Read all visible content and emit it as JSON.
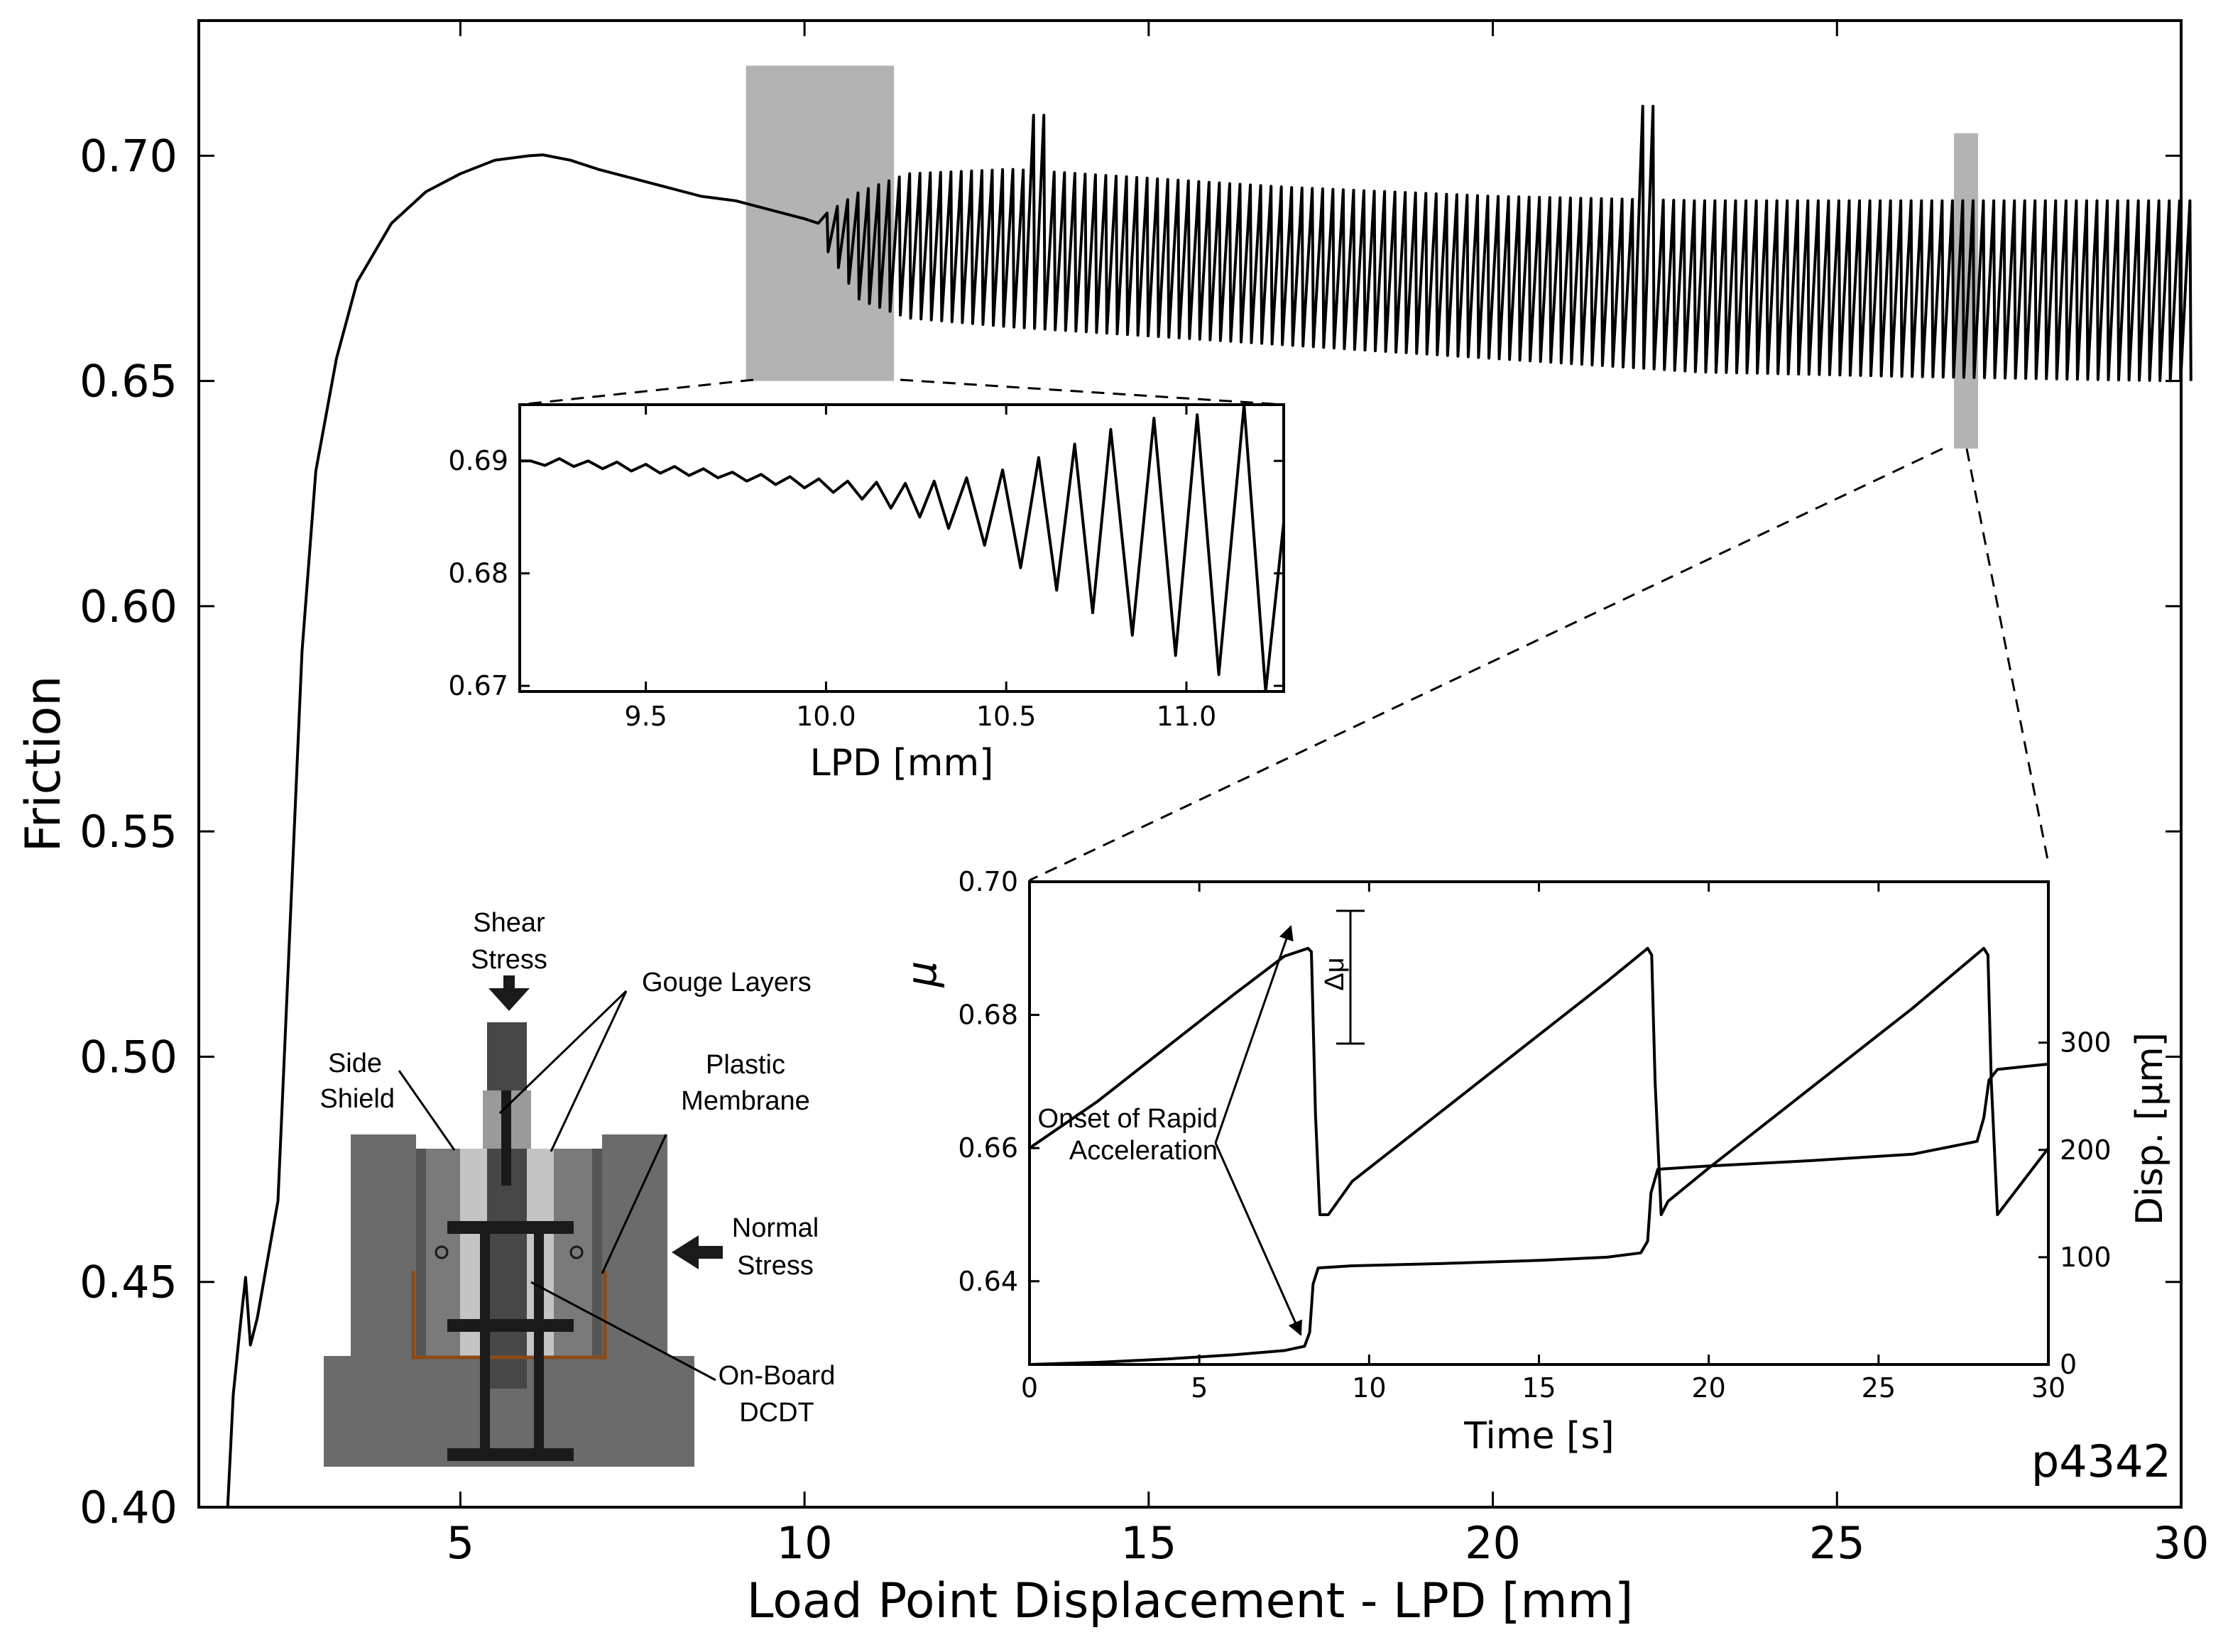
{
  "chart_data": [
    {
      "id": "main",
      "type": "line",
      "xlabel": "Load Point Displacement - LPD [mm]",
      "ylabel": "Friction",
      "xlim": [
        1.2,
        30
      ],
      "ylim": [
        0.4,
        0.73
      ],
      "xticks": [
        "5",
        "10",
        "15",
        "20",
        "25",
        "30"
      ],
      "yticks": [
        "0.40",
        "0.45",
        "0.50",
        "0.55",
        "0.60",
        "0.65",
        "0.70"
      ],
      "sample_label": "p4342",
      "grid": false,
      "series": [
        {
          "points": [
            [
              1.62,
              0.4
            ],
            [
              1.7,
              0.425
            ],
            [
              1.8,
              0.44
            ],
            [
              1.88,
              0.451
            ],
            [
              1.95,
              0.436
            ],
            [
              2.05,
              0.442
            ],
            [
              2.2,
              0.455
            ],
            [
              2.35,
              0.468
            ],
            [
              2.5,
              0.52
            ],
            [
              2.7,
              0.59
            ],
            [
              2.9,
              0.63
            ],
            [
              3.2,
              0.655
            ],
            [
              3.5,
              0.672
            ],
            [
              4.0,
              0.685
            ],
            [
              4.5,
              0.692
            ],
            [
              5.0,
              0.696
            ],
            [
              5.5,
              0.699
            ],
            [
              6.0,
              0.7
            ],
            [
              6.2,
              0.7002
            ],
            [
              6.6,
              0.699
            ],
            [
              7.0,
              0.697
            ],
            [
              7.5,
              0.695
            ],
            [
              8.0,
              0.693
            ],
            [
              8.5,
              0.691
            ],
            [
              9.0,
              0.69
            ],
            [
              9.5,
              0.688
            ],
            [
              10.0,
              0.686
            ],
            [
              10.2,
              0.685
            ]
          ],
          "stick_slip": {
            "x_start": 10.2,
            "x_end": 30.0,
            "period_mm": 0.15,
            "upper_envelope": [
              [
                10.2,
                0.686
              ],
              [
                10.8,
                0.692
              ],
              [
                11.5,
                0.696
              ],
              [
                13.0,
                0.697
              ],
              [
                15.0,
                0.695
              ],
              [
                17.0,
                0.693
              ],
              [
                20.0,
                0.691
              ],
              [
                23.0,
                0.69
              ],
              [
                26.0,
                0.69
              ],
              [
                30.0,
                0.69
              ]
            ],
            "lower_envelope": [
              [
                10.2,
                0.682
              ],
              [
                10.8,
                0.668
              ],
              [
                11.5,
                0.664
              ],
              [
                13.0,
                0.662
              ],
              [
                15.0,
                0.66
              ],
              [
                17.0,
                0.658
              ],
              [
                20.0,
                0.655
              ],
              [
                23.0,
                0.652
              ],
              [
                26.0,
                0.651
              ],
              [
                30.0,
                0.65
              ]
            ],
            "spikes": [
              [
                13.45,
                0.709
              ],
              [
                22.3,
                0.711
              ]
            ]
          }
        }
      ],
      "highlights": [
        {
          "x": [
            9.15,
            11.3
          ],
          "y": [
            0.65,
            0.72
          ],
          "color": "#b3b3b3"
        },
        {
          "x": [
            26.7,
            27.05
          ],
          "y": [
            0.635,
            0.705
          ],
          "color": "#b3b3b3"
        }
      ]
    },
    {
      "id": "inset-lpd",
      "type": "line",
      "xlabel": "LPD [mm]",
      "xlim": [
        9.15,
        11.27
      ],
      "ylim": [
        0.6695,
        0.695
      ],
      "xticks": [
        "9.5",
        "10.0",
        "10.5",
        "11.0"
      ],
      "yticks": [
        "0.67",
        "0.68",
        "0.69"
      ],
      "series": [
        {
          "start": [
            9.15,
            0.69
          ],
          "cycles": [
            [
              9.18,
              0.69
            ],
            [
              9.22,
              0.6896
            ],
            [
              9.26,
              0.6902
            ],
            [
              9.3,
              0.6895
            ],
            [
              9.34,
              0.69
            ],
            [
              9.38,
              0.6893
            ],
            [
              9.42,
              0.6899
            ],
            [
              9.46,
              0.6891
            ],
            [
              9.5,
              0.6897
            ],
            [
              9.54,
              0.6889
            ],
            [
              9.58,
              0.6895
            ],
            [
              9.62,
              0.6887
            ],
            [
              9.66,
              0.6893
            ],
            [
              9.7,
              0.6885
            ],
            [
              9.74,
              0.689
            ],
            [
              9.78,
              0.6882
            ],
            [
              9.82,
              0.6888
            ],
            [
              9.86,
              0.6879
            ],
            [
              9.9,
              0.6886
            ],
            [
              9.94,
              0.6876
            ],
            [
              9.98,
              0.6884
            ],
            [
              10.02,
              0.6872
            ],
            [
              10.06,
              0.6882
            ],
            [
              10.1,
              0.6866
            ],
            [
              10.14,
              0.6881
            ],
            [
              10.18,
              0.6858
            ],
            [
              10.22,
              0.688
            ],
            [
              10.26,
              0.685
            ],
            [
              10.3,
              0.6882
            ],
            [
              10.34,
              0.684
            ],
            [
              10.39,
              0.6885
            ],
            [
              10.44,
              0.6825
            ],
            [
              10.49,
              0.6892
            ],
            [
              10.54,
              0.6805
            ],
            [
              10.59,
              0.6903
            ],
            [
              10.64,
              0.6785
            ],
            [
              10.69,
              0.6915
            ],
            [
              10.74,
              0.6765
            ],
            [
              10.79,
              0.6928
            ],
            [
              10.85,
              0.6745
            ],
            [
              10.91,
              0.6938
            ],
            [
              10.97,
              0.6727
            ],
            [
              11.03,
              0.6941
            ],
            [
              11.09,
              0.671
            ],
            [
              11.16,
              0.695
            ],
            [
              11.22,
              0.6695
            ],
            [
              11.27,
              0.6845
            ]
          ]
        }
      ]
    },
    {
      "id": "inset-time",
      "type": "line",
      "xlabel": "Time [s]",
      "ylabel": "μ",
      "y2label": "Disp. [μm]",
      "xlim": [
        0,
        30
      ],
      "ylim": [
        0.6275,
        0.7
      ],
      "y2lim": [
        0,
        450
      ],
      "xticks": [
        "0",
        "5",
        "10",
        "15",
        "20",
        "25",
        "30"
      ],
      "yticks": [
        "0.64",
        "0.66",
        "0.68",
        "0.70"
      ],
      "y2ticks": [
        "0",
        "100",
        "200",
        "300"
      ],
      "series": [
        {
          "name": "μ",
          "points": [
            [
              0,
              0.66
            ],
            [
              2,
              0.667
            ],
            [
              4,
              0.675
            ],
            [
              6,
              0.683
            ],
            [
              7.5,
              0.6888
            ],
            [
              8.2,
              0.69
            ],
            [
              8.3,
              0.6895
            ],
            [
              8.42,
              0.665
            ],
            [
              8.55,
              0.65
            ],
            [
              8.8,
              0.65
            ],
            [
              9.5,
              0.655
            ],
            [
              11,
              0.661
            ],
            [
              13,
              0.669
            ],
            [
              15,
              0.677
            ],
            [
              17,
              0.685
            ],
            [
              18.2,
              0.69
            ],
            [
              18.32,
              0.689
            ],
            [
              18.42,
              0.67
            ],
            [
              18.6,
              0.65
            ],
            [
              18.8,
              0.652
            ],
            [
              20,
              0.657
            ],
            [
              22,
              0.665
            ],
            [
              24,
              0.673
            ],
            [
              26,
              0.681
            ],
            [
              28.1,
              0.69
            ],
            [
              28.22,
              0.689
            ],
            [
              28.32,
              0.67
            ],
            [
              28.5,
              0.65
            ],
            [
              28.8,
              0.652
            ],
            [
              30,
              0.66
            ]
          ]
        },
        {
          "name": "Disp.",
          "axis": "y2",
          "points": [
            [
              0,
              0
            ],
            [
              2,
              2
            ],
            [
              4,
              5
            ],
            [
              6,
              9
            ],
            [
              7.5,
              13
            ],
            [
              8.1,
              17
            ],
            [
              8.25,
              30
            ],
            [
              8.35,
              75
            ],
            [
              8.5,
              90
            ],
            [
              9.5,
              92
            ],
            [
              12,
              94
            ],
            [
              15,
              97
            ],
            [
              17,
              100
            ],
            [
              18,
              104
            ],
            [
              18.2,
              115
            ],
            [
              18.3,
              160
            ],
            [
              18.5,
              182
            ],
            [
              20,
              185
            ],
            [
              23,
              190
            ],
            [
              26,
              196
            ],
            [
              27.9,
              208
            ],
            [
              28.1,
              230
            ],
            [
              28.25,
              265
            ],
            [
              28.5,
              275
            ],
            [
              30,
              280
            ]
          ]
        }
      ],
      "annotations": {
        "delta_mu": "Δμ",
        "onset_line1": "Onset of Rapid",
        "onset_line2": "Acceleration"
      }
    }
  ],
  "diagram": {
    "labels": {
      "shear_line1": "Shear",
      "shear_line2": "Stress",
      "gouge": "Gouge Layers",
      "side_line1": "Side",
      "side_line2": "Shield",
      "plastic_line1": "Plastic",
      "plastic_line2": "Membrane",
      "normal_line1": "Normal",
      "normal_line2": "Stress",
      "dcdt_line1": "On-Board",
      "dcdt_line2": "DCDT"
    },
    "colors": {
      "block": "#6b6b6b",
      "dark": "#474747",
      "gouge": "#c4c4c4",
      "membrane": "#8b4a16",
      "frame": "#1a1a1a"
    }
  }
}
